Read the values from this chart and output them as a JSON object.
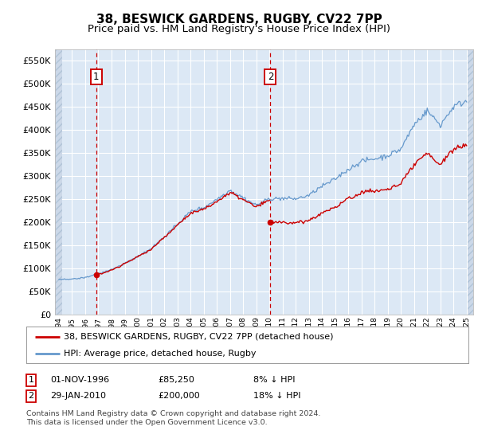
{
  "title": "38, BESWICK GARDENS, RUGBY, CV22 7PP",
  "subtitle": "Price paid vs. HM Land Registry's House Price Index (HPI)",
  "title_fontsize": 11,
  "subtitle_fontsize": 9.5,
  "ylim": [
    0,
    575000
  ],
  "yticks": [
    0,
    50000,
    100000,
    150000,
    200000,
    250000,
    300000,
    350000,
    400000,
    450000,
    500000,
    550000
  ],
  "ytick_labels": [
    "£0",
    "£50K",
    "£100K",
    "£150K",
    "£200K",
    "£250K",
    "£300K",
    "£350K",
    "£400K",
    "£450K",
    "£500K",
    "£550K"
  ],
  "xlim_start": 1993.7,
  "xlim_end": 2025.5,
  "plot_bg_color": "#dce8f5",
  "grid_color": "#ffffff",
  "sale1_date": 1996.83,
  "sale1_price": 85250,
  "sale2_date": 2010.08,
  "sale2_price": 200000,
  "line_red_color": "#cc0000",
  "line_blue_color": "#6699cc",
  "legend_entry1": "38, BESWICK GARDENS, RUGBY, CV22 7PP (detached house)",
  "legend_entry2": "HPI: Average price, detached house, Rugby",
  "footnote3": "Contains HM Land Registry data © Crown copyright and database right 2024.",
  "footnote4": "This data is licensed under the Open Government Licence v3.0.",
  "hpi_years": [
    1994,
    1995,
    1996,
    1997,
    1998,
    1999,
    2000,
    2001,
    2002,
    2003,
    2004,
    2005,
    2006,
    2007,
    2008,
    2009,
    2010,
    2011,
    2012,
    2013,
    2014,
    2015,
    2016,
    2017,
    2018,
    2019,
    2020,
    2021,
    2022,
    2023,
    2024,
    2025
  ],
  "hpi_values": [
    75000,
    76000,
    81000,
    90000,
    99000,
    113000,
    128000,
    145000,
    170000,
    198000,
    225000,
    234000,
    252000,
    272000,
    255000,
    238000,
    252000,
    253000,
    250000,
    258000,
    278000,
    293000,
    315000,
    333000,
    338000,
    345000,
    358000,
    410000,
    440000,
    410000,
    450000,
    462000
  ]
}
